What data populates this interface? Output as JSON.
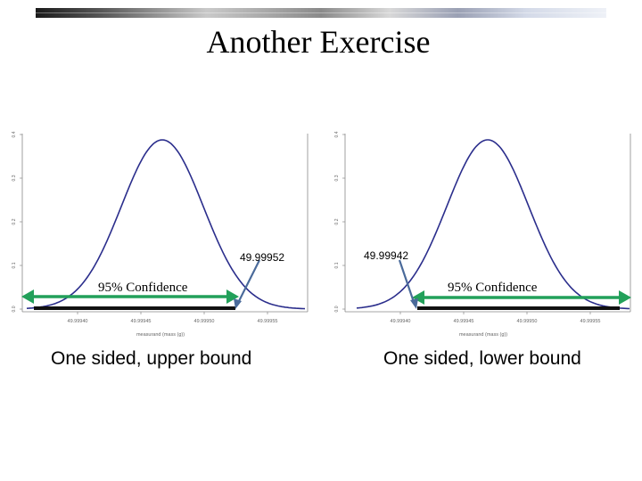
{
  "title": "Another Exercise",
  "panels": [
    {
      "id": "left",
      "confidence_label": "95% Confidence",
      "bound_value": "49.99952",
      "caption": "One sided, upper bound",
      "y_ticks": [
        "0.0",
        "0.1",
        "0.2",
        "0.3",
        "0.4"
      ],
      "x_ticks": [
        "49.99940",
        "49.99945",
        "49.99950",
        "49.99955"
      ],
      "x_axis_label": "measurand (mass (g))"
    },
    {
      "id": "right",
      "confidence_label": "95% Confidence",
      "bound_value": "49.99942",
      "caption": "One sided, lower bound",
      "y_ticks": [
        "0.0",
        "0.1",
        "0.2",
        "0.3",
        "0.4"
      ],
      "x_ticks": [
        "49.99940",
        "49.99945",
        "49.99950",
        "49.99955"
      ],
      "x_axis_label": "measurand (mass (g))"
    }
  ],
  "colors": {
    "curve": "#2b2e8c",
    "arrow": "#22a05a",
    "pointer": "#4a6a9a",
    "bound_line": "#111111"
  }
}
